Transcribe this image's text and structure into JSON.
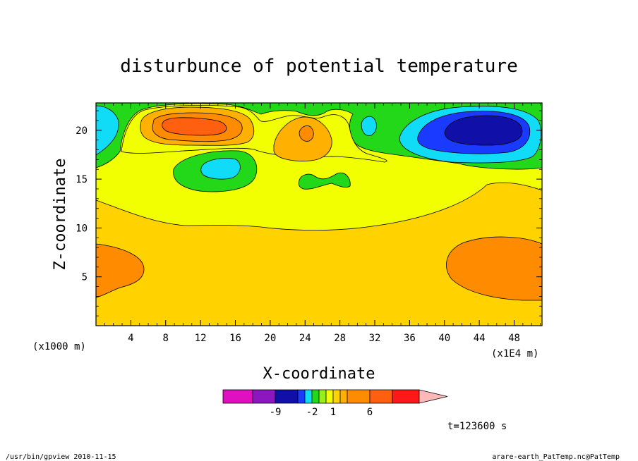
{
  "chart_data": {
    "type": "heatmap",
    "title": "disturbunce of potential temperature",
    "xlabel": "X-coordinate",
    "ylabel": "Z-coordinate",
    "x_unit": "(x1E4 m)",
    "y_unit": "(x1000 m)",
    "xlim": [
      0,
      51.2
    ],
    "ylim": [
      0,
      22.8
    ],
    "x_ticks": [
      "4",
      "8",
      "12",
      "16",
      "20",
      "24",
      "28",
      "32",
      "36",
      "40",
      "44",
      "48"
    ],
    "y_ticks": [
      "5",
      "10",
      "15",
      "20"
    ],
    "x_tick_values": [
      4,
      8,
      12,
      16,
      20,
      24,
      28,
      32,
      36,
      40,
      44,
      48
    ],
    "y_tick_values": [
      5,
      10,
      15,
      20
    ],
    "colorbar": {
      "colors": [
        "#e010c0",
        "#8c16c0",
        "#1010a8",
        "#1a3aff",
        "#10dcf8",
        "#22d818",
        "#96f018",
        "#f2ff00",
        "#ffd200",
        "#ffb000",
        "#ff8c00",
        "#ff6010",
        "#ff1818",
        "#ff7878",
        "#ffb8b8"
      ],
      "labels": [
        "-9",
        "-2",
        "1",
        "6"
      ]
    },
    "contour_regions": [
      {
        "level": "< -2",
        "color": "#1010a8",
        "center": [
          44.5,
          20.5
        ]
      },
      {
        "level": "-2..-1",
        "color": "#10dcf8",
        "center": [
          14.0,
          16.5
        ]
      },
      {
        "level": "0..1",
        "color": "#f2ff00"
      },
      {
        "level": "1..2",
        "color": "#ffd200"
      },
      {
        "level": "2..3",
        "color": "#ffb000",
        "center": [
          24.0,
          19.5
        ]
      },
      {
        "level": "3..4",
        "color": "#ff8c00",
        "center": [
          3.0,
          5.5
        ]
      },
      {
        "level": "4..5",
        "color": "#ff6010",
        "center": [
          12.0,
          20.4
        ]
      }
    ]
  },
  "time_label": "t=123600 s",
  "footer": {
    "left": "/usr/bin/gpview   2010-11-15",
    "right": "arare-earth_PatTemp.nc@PatTemp"
  },
  "colors": {
    "lightgreen": "#22d818",
    "yellow": "#f2ff00",
    "gold": "#ffd200",
    "orange1": "#ffb000",
    "orange2": "#ff8c00",
    "orange3": "#ff6010",
    "cyan": "#10dcf8",
    "blue": "#1010a8"
  }
}
